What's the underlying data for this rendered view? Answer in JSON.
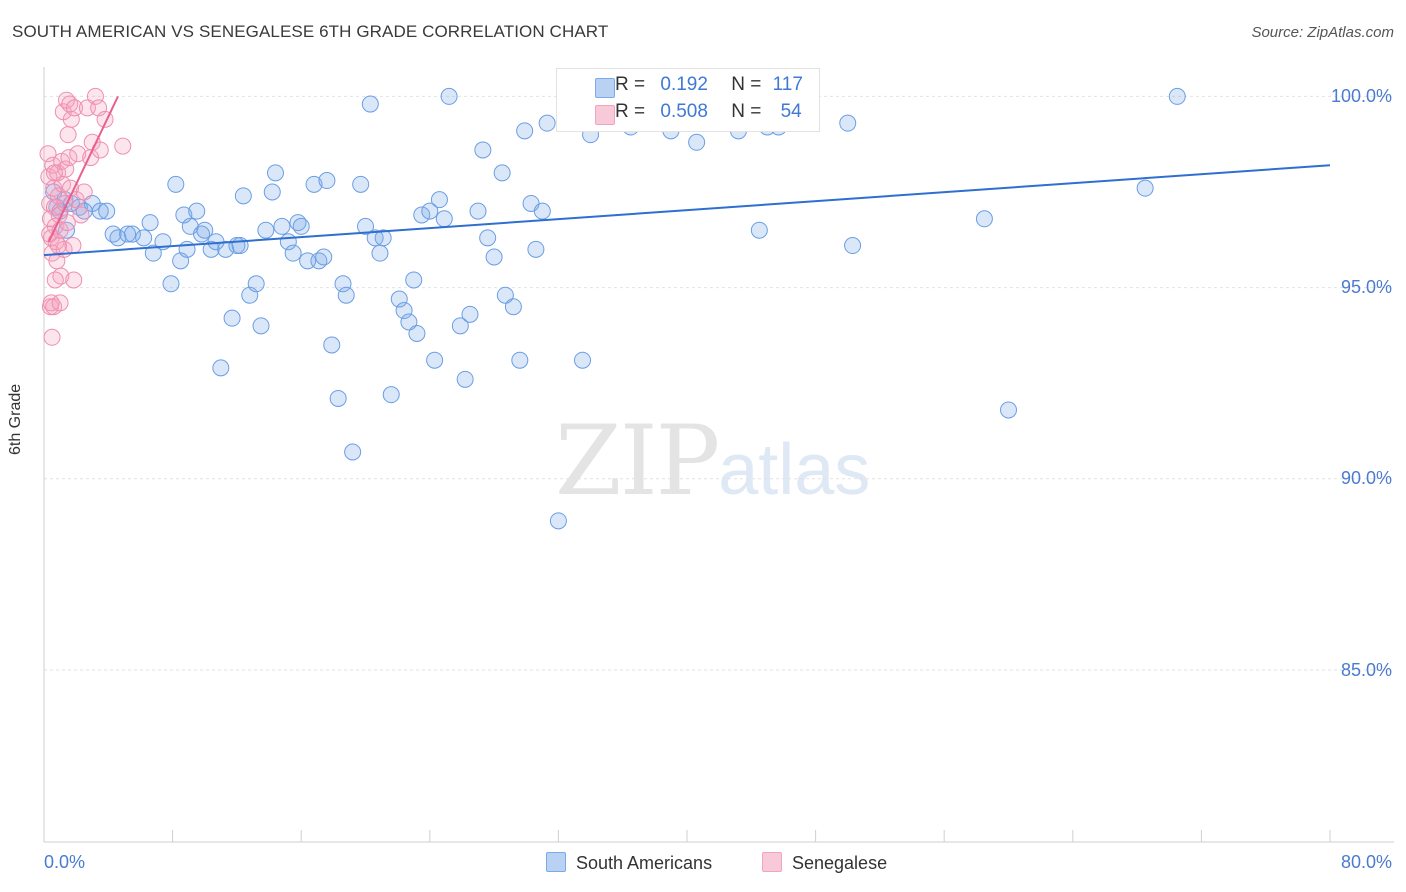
{
  "chart_data": {
    "type": "scatter",
    "title": "SOUTH AMERICAN VS SENEGALESE 6TH GRADE CORRELATION CHART",
    "source": "Source: ZipAtlas.com",
    "xlabel": "",
    "ylabel": "6th Grade",
    "xlim": [
      0,
      80
    ],
    "ylim": [
      80.5,
      100.9
    ],
    "y_ticks": [
      85,
      90,
      95,
      100
    ],
    "y_tick_labels": [
      "85.0%",
      "90.0%",
      "95.0%",
      "100.0%"
    ],
    "x_tick_labels": {
      "min": "0.0%",
      "max": "80.0%"
    },
    "x_ticks": [
      0,
      8,
      16,
      24,
      32,
      40,
      48,
      56,
      64,
      72,
      80
    ],
    "grid": true,
    "colors": {
      "blue": "#7aaae8",
      "blue_line": "#2f6fcf",
      "pink": "#f3a3bd",
      "pink_line": "#e8608f",
      "axis_text": "#4a7bd0"
    },
    "stats": [
      {
        "r_label": "R =",
        "r_value": "0.192",
        "n_label": "N =",
        "n_value": "117"
      },
      {
        "r_label": "R =",
        "r_value": "0.508",
        "n_label": "N =",
        "n_value": "54"
      }
    ],
    "series": [
      {
        "name": "South Americans",
        "color": "#7aaae8",
        "trend": {
          "x": [
            0,
            80
          ],
          "y": [
            95.85,
            98.2
          ]
        },
        "points": [
          [
            0.6,
            97.5
          ],
          [
            0.8,
            97.1
          ],
          [
            1.0,
            97.0
          ],
          [
            1.3,
            97.3
          ],
          [
            1.7,
            97.2
          ],
          [
            2.2,
            97.1
          ],
          [
            3.0,
            97.2
          ],
          [
            1.4,
            96.5
          ],
          [
            2.5,
            97.0
          ],
          [
            3.5,
            97.0
          ],
          [
            3.9,
            97.0
          ],
          [
            4.3,
            96.4
          ],
          [
            4.6,
            96.3
          ],
          [
            5.2,
            96.4
          ],
          [
            5.5,
            96.4
          ],
          [
            6.2,
            96.3
          ],
          [
            6.6,
            96.7
          ],
          [
            6.8,
            95.9
          ],
          [
            7.4,
            96.2
          ],
          [
            7.9,
            95.1
          ],
          [
            8.2,
            97.7
          ],
          [
            8.5,
            95.7
          ],
          [
            8.7,
            96.9
          ],
          [
            8.9,
            96.0
          ],
          [
            9.1,
            96.6
          ],
          [
            9.5,
            97.0
          ],
          [
            9.8,
            96.4
          ],
          [
            10.0,
            96.5
          ],
          [
            10.4,
            96.0
          ],
          [
            10.7,
            96.2
          ],
          [
            11.0,
            92.9
          ],
          [
            11.3,
            96.0
          ],
          [
            11.7,
            94.2
          ],
          [
            12.0,
            96.1
          ],
          [
            12.2,
            96.1
          ],
          [
            12.4,
            97.4
          ],
          [
            12.8,
            94.8
          ],
          [
            13.2,
            95.1
          ],
          [
            13.5,
            94.0
          ],
          [
            13.8,
            96.5
          ],
          [
            14.2,
            97.5
          ],
          [
            14.4,
            98.0
          ],
          [
            14.8,
            96.6
          ],
          [
            15.2,
            96.2
          ],
          [
            15.5,
            95.9
          ],
          [
            15.8,
            96.7
          ],
          [
            16.0,
            96.6
          ],
          [
            16.4,
            95.7
          ],
          [
            16.8,
            97.7
          ],
          [
            17.1,
            95.7
          ],
          [
            17.4,
            95.8
          ],
          [
            17.6,
            97.8
          ],
          [
            17.9,
            93.5
          ],
          [
            18.3,
            92.1
          ],
          [
            18.6,
            95.1
          ],
          [
            18.8,
            94.8
          ],
          [
            19.2,
            90.7
          ],
          [
            19.7,
            97.7
          ],
          [
            20.0,
            96.6
          ],
          [
            20.3,
            99.8
          ],
          [
            20.6,
            96.3
          ],
          [
            20.9,
            95.9
          ],
          [
            21.1,
            96.3
          ],
          [
            21.6,
            92.2
          ],
          [
            22.1,
            94.7
          ],
          [
            22.4,
            94.4
          ],
          [
            22.7,
            94.1
          ],
          [
            23.0,
            95.2
          ],
          [
            23.2,
            93.8
          ],
          [
            23.5,
            96.9
          ],
          [
            24.0,
            97.0
          ],
          [
            24.3,
            93.1
          ],
          [
            24.6,
            97.3
          ],
          [
            24.9,
            96.8
          ],
          [
            25.2,
            100.0
          ],
          [
            25.9,
            94.0
          ],
          [
            26.2,
            92.6
          ],
          [
            26.5,
            94.3
          ],
          [
            27.0,
            97.0
          ],
          [
            27.3,
            98.6
          ],
          [
            27.6,
            96.3
          ],
          [
            28.0,
            95.8
          ],
          [
            28.5,
            98.0
          ],
          [
            28.7,
            94.8
          ],
          [
            29.2,
            94.5
          ],
          [
            29.6,
            93.1
          ],
          [
            29.9,
            99.1
          ],
          [
            30.3,
            97.2
          ],
          [
            30.6,
            96.0
          ],
          [
            31.0,
            97.0
          ],
          [
            31.3,
            99.3
          ],
          [
            32.0,
            88.9
          ],
          [
            32.4,
            99.9
          ],
          [
            32.7,
            99.9
          ],
          [
            33.5,
            93.1
          ],
          [
            34.0,
            99.0
          ],
          [
            34.8,
            99.3
          ],
          [
            35.6,
            100.0
          ],
          [
            36.5,
            99.2
          ],
          [
            38.0,
            99.3
          ],
          [
            39.0,
            99.1
          ],
          [
            40.6,
            98.8
          ],
          [
            40.9,
            99.3
          ],
          [
            43.2,
            99.1
          ],
          [
            44.5,
            96.5
          ],
          [
            45.0,
            99.2
          ],
          [
            45.3,
            100.0
          ],
          [
            45.7,
            99.2
          ],
          [
            47.5,
            99.5
          ],
          [
            50.0,
            99.3
          ],
          [
            50.3,
            96.1
          ],
          [
            58.5,
            96.8
          ],
          [
            60.0,
            91.8
          ],
          [
            68.5,
            97.6
          ],
          [
            70.5,
            100.0
          ]
        ]
      },
      {
        "name": "Senegalese",
        "color": "#f3a3bd",
        "trend": {
          "x": [
            0.3,
            4.6
          ],
          "y": [
            96.2,
            100.0
          ]
        },
        "points": [
          [
            0.25,
            98.5
          ],
          [
            0.3,
            97.9
          ],
          [
            0.35,
            97.2
          ],
          [
            0.4,
            96.8
          ],
          [
            0.45,
            96.3
          ],
          [
            0.5,
            95.9
          ],
          [
            0.55,
            98.2
          ],
          [
            0.6,
            97.6
          ],
          [
            0.65,
            97.1
          ],
          [
            0.7,
            96.6
          ],
          [
            0.75,
            96.2
          ],
          [
            0.8,
            95.7
          ],
          [
            0.85,
            98.0
          ],
          [
            0.9,
            97.4
          ],
          [
            0.95,
            96.9
          ],
          [
            1.0,
            96.5
          ],
          [
            1.05,
            95.3
          ],
          [
            1.1,
            98.3
          ],
          [
            1.15,
            97.7
          ],
          [
            1.2,
            99.6
          ],
          [
            1.25,
            96.0
          ],
          [
            1.3,
            97.2
          ],
          [
            1.35,
            98.1
          ],
          [
            1.4,
            99.9
          ],
          [
            1.45,
            96.7
          ],
          [
            1.5,
            99.0
          ],
          [
            1.55,
            98.4
          ],
          [
            1.6,
            99.8
          ],
          [
            1.65,
            97.6
          ],
          [
            1.7,
            99.4
          ],
          [
            1.8,
            96.1
          ],
          [
            1.85,
            95.2
          ],
          [
            1.9,
            99.7
          ],
          [
            2.0,
            97.3
          ],
          [
            2.1,
            98.5
          ],
          [
            2.3,
            96.9
          ],
          [
            2.5,
            97.5
          ],
          [
            2.7,
            99.7
          ],
          [
            2.9,
            98.4
          ],
          [
            3.0,
            98.8
          ],
          [
            3.2,
            100.0
          ],
          [
            3.4,
            99.7
          ],
          [
            3.5,
            98.6
          ],
          [
            3.8,
            99.4
          ],
          [
            0.4,
            94.5
          ],
          [
            0.45,
            94.6
          ],
          [
            0.5,
            93.7
          ],
          [
            0.6,
            94.5
          ],
          [
            0.7,
            95.2
          ],
          [
            1.0,
            94.6
          ],
          [
            4.9,
            98.7
          ],
          [
            0.35,
            96.4
          ],
          [
            0.65,
            98.0
          ],
          [
            0.9,
            96.1
          ]
        ]
      }
    ],
    "legend": [
      "South Americans",
      "Senegalese"
    ],
    "watermark": {
      "zip": "ZIP",
      "atlas": "atlas"
    }
  }
}
